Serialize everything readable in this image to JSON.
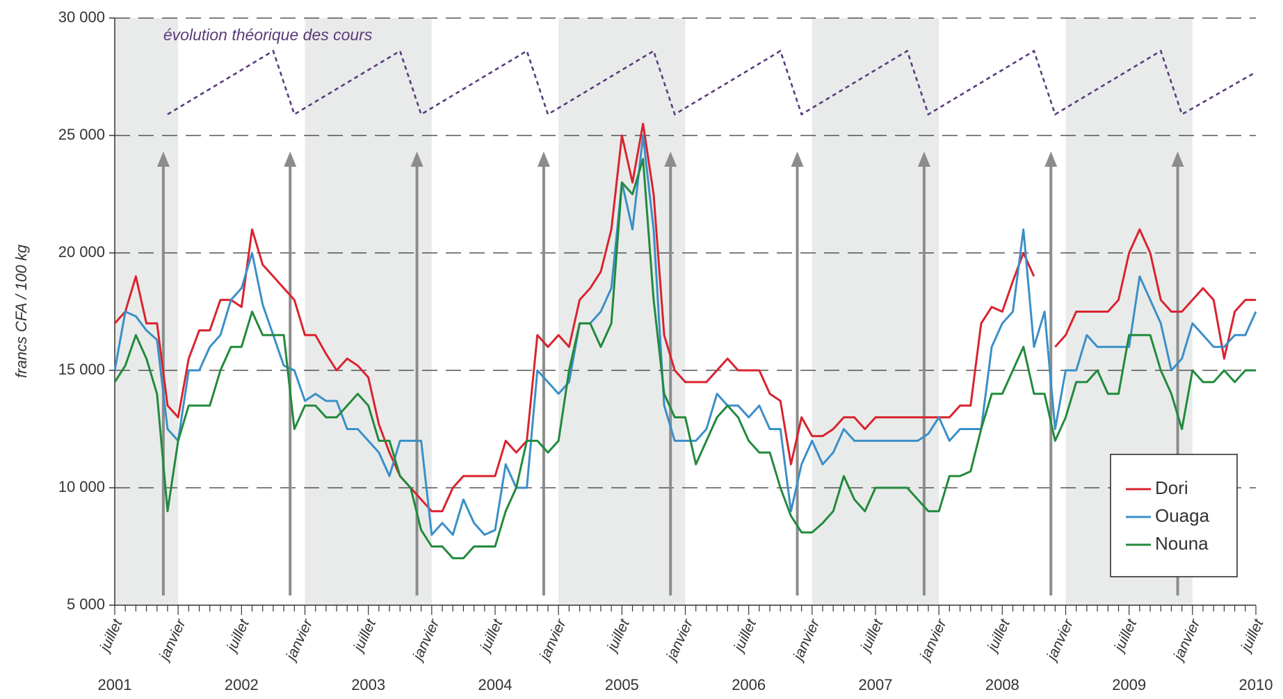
{
  "chart_data": {
    "type": "line",
    "y_label": "francs CFA / 100 kg",
    "categories": [
      "juillet",
      null,
      null,
      null,
      null,
      null,
      "janvier",
      null,
      null,
      null,
      null,
      null,
      "juillet",
      null,
      null,
      null,
      null,
      null,
      "janvier",
      null,
      null,
      null,
      null,
      null,
      "juillet",
      null,
      null,
      null,
      null,
      null,
      "janvier",
      null,
      null,
      null,
      null,
      null,
      "juillet",
      null,
      null,
      null,
      null,
      null,
      "janvier",
      null,
      null,
      null,
      null,
      null,
      "juillet",
      null,
      null,
      null,
      null,
      null,
      "janvier",
      null,
      null,
      null,
      null,
      null,
      "juillet",
      null,
      null,
      null,
      null,
      null,
      "janvier",
      null,
      null,
      null,
      null,
      null,
      "juillet",
      null,
      null,
      null,
      null,
      null,
      "janvier",
      null,
      null,
      null,
      null,
      null,
      "juillet",
      null,
      null,
      null,
      null,
      null,
      "janvier",
      null,
      null,
      null,
      null,
      null,
      "juillet",
      null,
      null,
      null,
      null,
      null,
      "janvier",
      null,
      null,
      null,
      null,
      null,
      "juillet"
    ],
    "years": [
      "2001",
      "2002",
      "2003",
      "2004",
      "2005",
      "2006",
      "2007",
      "2008",
      "2009",
      "2010"
    ],
    "ylim": [
      5000,
      30000
    ],
    "yticks": [
      {
        "value": 5000,
        "label": "5 000"
      },
      {
        "value": 10000,
        "label": "10 000"
      },
      {
        "value": 15000,
        "label": "15 000"
      },
      {
        "value": 20000,
        "label": "20 000"
      },
      {
        "value": 25000,
        "label": "25 000"
      },
      {
        "value": 30000,
        "label": "30 000"
      }
    ],
    "grid": true,
    "legend": "lower right",
    "series": [
      {
        "name": "Dori",
        "color": "#d9232e",
        "values": [
          17000,
          17500,
          19000,
          17000,
          17000,
          13500,
          13000,
          15500,
          16700,
          16700,
          18000,
          18000,
          17700,
          21000,
          19500,
          19000,
          18500,
          18000,
          16500,
          16500,
          15700,
          15000,
          15500,
          15200,
          14700,
          12700,
          11500,
          10500,
          10000,
          9500,
          9000,
          9000,
          10000,
          10500,
          10500,
          10500,
          10500,
          12000,
          11500,
          12000,
          16500,
          16000,
          16500,
          16000,
          18000,
          18500,
          19200,
          21000,
          25000,
          23000,
          25500,
          22500,
          16500,
          15000,
          14500,
          14500,
          14500,
          15000,
          15500,
          15000,
          15000,
          15000,
          14000,
          13700,
          11000,
          13000,
          12200,
          12200,
          12500,
          13000,
          13000,
          12500,
          13000,
          13000,
          13000,
          13000,
          13000,
          13000,
          13000,
          13000,
          13500,
          13500,
          17000,
          17700,
          17500,
          18800,
          20000,
          19000,
          null,
          16000,
          16500,
          17500,
          17500,
          17500,
          17500,
          18000,
          20000,
          21000,
          20000,
          18000,
          17500,
          17500,
          18000,
          18500,
          18000,
          15500,
          17500,
          18000,
          18000
        ]
      },
      {
        "name": "Ouaga",
        "color": "#3a8fc8",
        "values": [
          15000,
          17500,
          17300,
          16700,
          16300,
          12500,
          12000,
          15000,
          15000,
          16000,
          16500,
          18000,
          18500,
          20000,
          17800,
          16500,
          15200,
          15000,
          13700,
          14000,
          13700,
          13700,
          12500,
          12500,
          12000,
          11500,
          10500,
          12000,
          12000,
          12000,
          8000,
          8500,
          8000,
          9500,
          8500,
          8000,
          8200,
          11000,
          10000,
          10000,
          15000,
          14500,
          14000,
          14500,
          17000,
          17000,
          17500,
          18500,
          23000,
          21000,
          25000,
          21000,
          13500,
          12000,
          12000,
          12000,
          12500,
          14000,
          13500,
          13500,
          13000,
          13500,
          12500,
          12500,
          9000,
          11000,
          12000,
          11000,
          11500,
          12500,
          12000,
          12000,
          12000,
          12000,
          12000,
          12000,
          12000,
          12300,
          13000,
          12000,
          12500,
          12500,
          12500,
          16000,
          17000,
          17500,
          21000,
          16000,
          17500,
          12500,
          15000,
          15000,
          16500,
          16000,
          16000,
          16000,
          16000,
          19000,
          18000,
          17000,
          15000,
          15500,
          17000,
          16500,
          16000,
          16000,
          16500,
          16500,
          17500
        ]
      },
      {
        "name": "Nouna",
        "color": "#218a3c",
        "values": [
          14500,
          15200,
          16500,
          15500,
          14000,
          9000,
          12000,
          13500,
          13500,
          13500,
          15000,
          16000,
          16000,
          17500,
          16500,
          16500,
          16500,
          12500,
          13500,
          13500,
          13000,
          13000,
          13500,
          14000,
          13500,
          12000,
          12000,
          10500,
          10000,
          8200,
          7500,
          7500,
          7000,
          7000,
          7500,
          7500,
          7500,
          9000,
          10000,
          12000,
          12000,
          11500,
          12000,
          15000,
          17000,
          17000,
          16000,
          17000,
          23000,
          22500,
          24000,
          18000,
          14000,
          13000,
          13000,
          11000,
          12000,
          13000,
          13500,
          13000,
          12000,
          11500,
          11500,
          10000,
          8800,
          8100,
          8100,
          8500,
          9000,
          10500,
          9500,
          9000,
          10000,
          10000,
          10000,
          10000,
          9500,
          9000,
          9000,
          10500,
          10500,
          10700,
          12500,
          14000,
          14000,
          15000,
          16000,
          14000,
          14000,
          12000,
          13000,
          14500,
          14500,
          15000,
          14000,
          14000,
          16500,
          16500,
          16500,
          15000,
          14000,
          12500,
          15000,
          14500,
          14500,
          15000,
          14500,
          15000,
          15000
        ]
      }
    ],
    "theoretical_line": {
      "label": "évolution théorique des cours",
      "color": "#5a3b7a",
      "x": [
        5,
        15,
        17,
        27,
        29,
        39,
        41,
        51,
        53,
        63,
        65,
        75,
        77,
        87,
        89,
        99,
        101,
        108
      ],
      "values": [
        25900,
        28600,
        25900,
        28600,
        25900,
        28600,
        25900,
        28600,
        25900,
        28600,
        25900,
        28600,
        25900,
        28600,
        25900,
        28600,
        25900,
        27700
      ]
    }
  }
}
